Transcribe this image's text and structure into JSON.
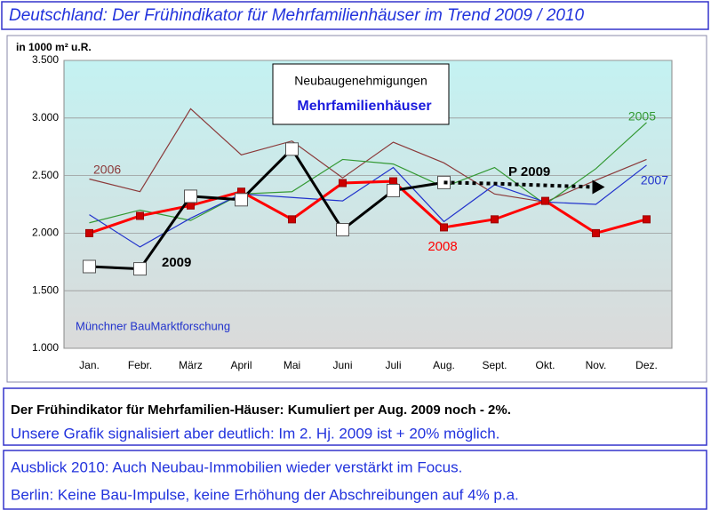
{
  "chart_data": {
    "type": "line",
    "title": "Deutschland: Der Frühindikator für Mehrfamilienhäuser im Trend  2009 / 2010",
    "y_label": "in 1000 m² u.R.",
    "legend_lines": [
      "Neubaugenehmigungen",
      "Mehrfamilienhäuser"
    ],
    "annotation": "Münchner BauMarktforschung",
    "categories": [
      "Jan.",
      "Febr.",
      "März",
      "April",
      "Mai",
      "Juni",
      "Juli",
      "Aug.",
      "Sept.",
      "Okt.",
      "Nov.",
      "Dez."
    ],
    "series": [
      {
        "name": "2006",
        "color": "#8b3a3a",
        "values": [
          2470,
          2360,
          3080,
          2680,
          2800,
          2480,
          2790,
          2610,
          2340,
          2270,
          2460,
          2640
        ]
      },
      {
        "name": "2005",
        "color": "#339933",
        "values": [
          2090,
          2200,
          2110,
          2340,
          2360,
          2640,
          2600,
          2400,
          2570,
          2250,
          2560,
          2960
        ]
      },
      {
        "name": "2007",
        "color": "#2233cc",
        "values": [
          2160,
          1880,
          2130,
          2340,
          2310,
          2280,
          2570,
          2100,
          2420,
          2270,
          2250,
          2590
        ]
      },
      {
        "name": "2008",
        "color": "#ff0000",
        "marker": "square",
        "values": [
          2000,
          2150,
          2240,
          2360,
          2120,
          2435,
          2450,
          2050,
          2120,
          2280,
          2000,
          2120
        ]
      },
      {
        "name": "2009",
        "color": "#000000",
        "marker": "square",
        "values": [
          1710,
          1690,
          2320,
          2290,
          2730,
          2030,
          2370,
          2440,
          null,
          null,
          null,
          null
        ]
      },
      {
        "name": "P 2009",
        "color": "#000000",
        "style": "dotted",
        "values": [
          null,
          null,
          null,
          null,
          null,
          null,
          null,
          2440,
          2430,
          2415,
          2400,
          null
        ]
      }
    ],
    "ylim": [
      1000,
      3500
    ],
    "yticks": [
      {
        "value": 1000,
        "label": "1.000"
      },
      {
        "value": 1500,
        "label": "1.500"
      },
      {
        "value": 2000,
        "label": "2.000"
      },
      {
        "value": 2500,
        "label": "2.500"
      },
      {
        "value": 3000,
        "label": "3.000"
      },
      {
        "value": 3500,
        "label": "3.500"
      }
    ],
    "grid": true
  },
  "text_boxes": [
    [
      "Der Frühindikator für Mehrfamilien-Häuser:  Kumuliert per Aug. 2009 noch - 2%.",
      "Unsere Grafik signalisiert aber deutlich: Im 2. Hj. 2009 ist + 20% möglich."
    ],
    [
      "Ausblick 2010: Auch Neubau-Immobilien wieder verstärkt im Focus.",
      "Berlin: Keine Bau-Impulse, keine Erhöhung der Abschreibungen auf 4% p.a."
    ]
  ]
}
